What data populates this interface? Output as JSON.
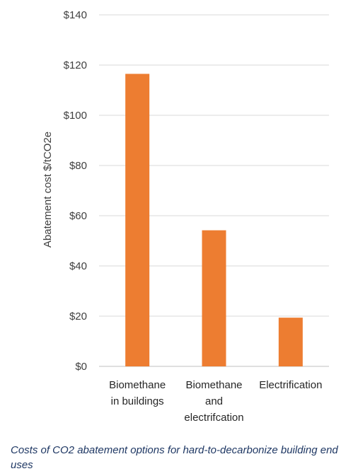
{
  "chart_data": {
    "type": "bar",
    "categories": [
      [
        "Biomethane",
        "in buildings"
      ],
      [
        "Biomethane",
        "and",
        "electrifcation"
      ],
      [
        "Electrification"
      ]
    ],
    "values": [
      116.5,
      54.2,
      19.4
    ],
    "ylabel": "Abatement cost $/tCO2e",
    "ylim": [
      0,
      140
    ],
    "yticks": [
      "$0",
      "$20",
      "$40",
      "$60",
      "$80",
      "$100",
      "$120",
      "$140"
    ],
    "bar_color": "#ED7D31",
    "grid": true
  },
  "caption": "Costs of CO2 abatement options for hard-to-decarbonize building end uses"
}
